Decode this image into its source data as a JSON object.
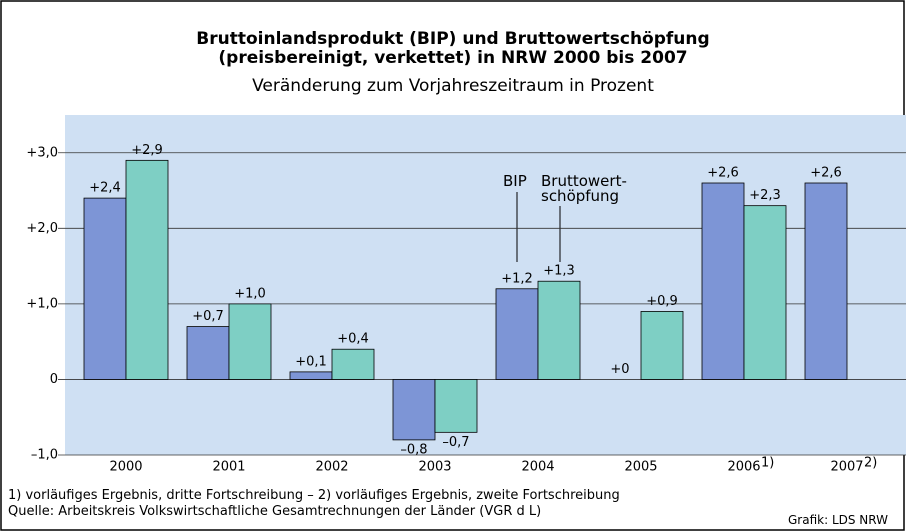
{
  "chart_data": {
    "type": "bar",
    "title": "Bruttoinlandsprodukt (BIP) und Bruttowertschöpfung\n(preisbereinigt, verkettet) in NRW 2000 bis 2007",
    "subtitle": "Veränderung zum Vorjahreszeitraum in Prozent",
    "categories": [
      "2000",
      "2001",
      "2002",
      "2003",
      "2004",
      "2005",
      "2006",
      "2007"
    ],
    "category_notes": [
      null,
      null,
      null,
      null,
      null,
      null,
      "1)",
      "2)"
    ],
    "series": [
      {
        "name": "BIP",
        "color": "#7d95d6",
        "values": [
          2.4,
          0.7,
          0.1,
          -0.8,
          1.2,
          0,
          2.6,
          2.6
        ],
        "value_labels": [
          "+2,4",
          "+0,7",
          "+0,1",
          "–0,8",
          "+1,2",
          "+0",
          "+2,6",
          "+2,6"
        ]
      },
      {
        "name": "Bruttowert-\nschöpfung",
        "color": "#7ecfc4",
        "values": [
          2.9,
          1.0,
          0.4,
          -0.7,
          1.3,
          0.9,
          2.3,
          null
        ],
        "value_labels": [
          "+2,9",
          "+1,0",
          "+0,4",
          "–0,7",
          "+1,3",
          "+0,9",
          "+2,3",
          null
        ]
      }
    ],
    "ylim": [
      -1,
      3.5
    ],
    "yticks": [
      {
        "value": -1,
        "label": "–1,0"
      },
      0,
      {
        "value": 1,
        "label": "+1,0"
      },
      {
        "value": 2,
        "label": "+2,0"
      },
      {
        "value": 3,
        "label": "+3,0"
      }
    ],
    "grid": true,
    "footnotes": [
      "1) vorläufiges Ergebnis, dritte Fortschreibung – 2) vorläufiges Ergebnis, zweite Fortschreibung",
      "Quelle: Arbeitskreis Volkswirtschaftliche Gesamtrechnungen der Länder (VGR d L)"
    ],
    "credit": "Grafik: LDS NRW"
  }
}
